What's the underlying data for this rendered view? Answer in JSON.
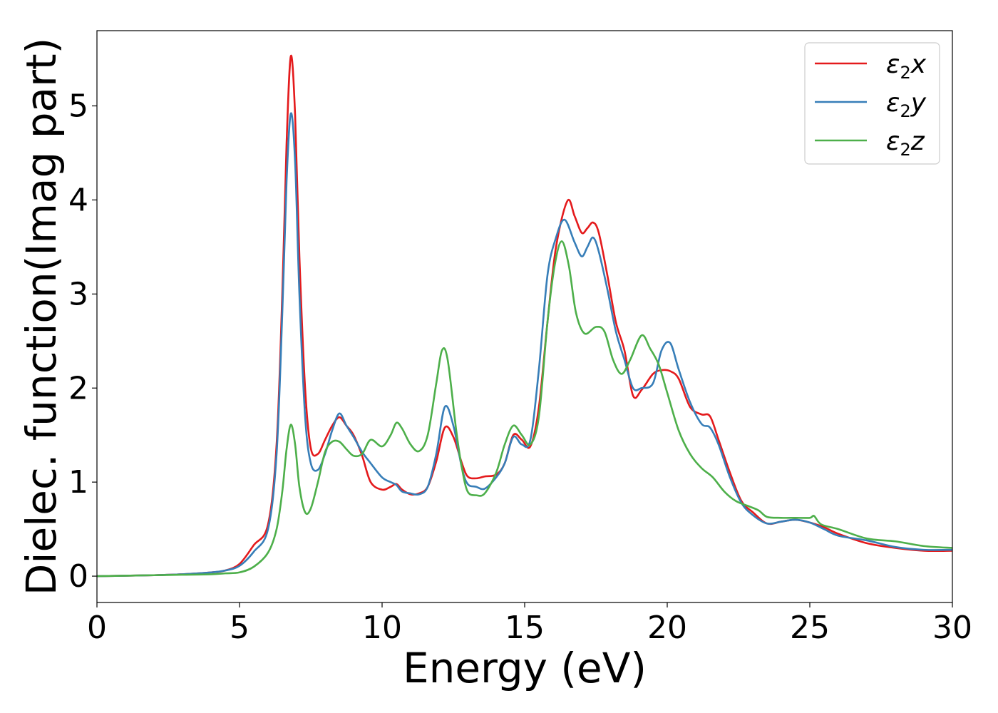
{
  "chart_data": {
    "type": "line",
    "xlabel": "Energy (eV)",
    "ylabel": "Dielec. function(Imag part)",
    "xlim": [
      0,
      30
    ],
    "ylim": [
      -0.28,
      5.8
    ],
    "xticks": [
      0,
      5,
      10,
      15,
      20,
      25,
      30
    ],
    "yticks": [
      0,
      1,
      2,
      3,
      4,
      5
    ],
    "grid": false,
    "legend_position": "top-right",
    "series": [
      {
        "name": "ε2x",
        "legend": {
          "symbol": "ε",
          "sub": "2",
          "suffix": "x"
        },
        "color": "#e41a1c",
        "x": [
          0,
          1,
          2,
          3,
          4,
          4.5,
          5,
          5.5,
          6,
          6.3,
          6.5,
          6.65,
          6.8,
          6.95,
          7.1,
          7.3,
          7.5,
          7.75,
          8,
          8.25,
          8.5,
          8.75,
          9,
          9.3,
          9.6,
          10,
          10.3,
          10.5,
          10.7,
          11,
          11.3,
          11.6,
          11.9,
          12.2,
          12.5,
          12.8,
          13,
          13.3,
          13.6,
          14,
          14.3,
          14.6,
          14.9,
          15.2,
          15.5,
          15.8,
          16.1,
          16.5,
          16.75,
          17,
          17.2,
          17.4,
          17.6,
          17.9,
          18.2,
          18.5,
          18.8,
          19.1,
          19.5,
          19.8,
          20.1,
          20.4,
          20.8,
          21.2,
          21.5,
          21.8,
          22.2,
          22.6,
          23,
          23.5,
          24,
          24.5,
          25,
          25.5,
          26,
          27,
          28,
          29,
          30
        ],
        "y": [
          0.0,
          0.005,
          0.01,
          0.02,
          0.04,
          0.06,
          0.13,
          0.33,
          0.55,
          1.4,
          3.0,
          4.6,
          5.53,
          4.9,
          3.4,
          2.0,
          1.36,
          1.3,
          1.45,
          1.6,
          1.69,
          1.6,
          1.5,
          1.28,
          1.0,
          0.92,
          0.95,
          0.98,
          0.92,
          0.87,
          0.88,
          0.95,
          1.22,
          1.58,
          1.48,
          1.2,
          1.06,
          1.04,
          1.06,
          1.08,
          1.2,
          1.5,
          1.45,
          1.38,
          1.8,
          2.7,
          3.5,
          3.99,
          3.83,
          3.65,
          3.7,
          3.76,
          3.65,
          3.2,
          2.7,
          2.4,
          1.92,
          1.98,
          2.15,
          2.19,
          2.18,
          2.1,
          1.8,
          1.72,
          1.7,
          1.45,
          1.1,
          0.8,
          0.68,
          0.56,
          0.58,
          0.6,
          0.57,
          0.52,
          0.45,
          0.35,
          0.3,
          0.27,
          0.27
        ]
      },
      {
        "name": "ε2y",
        "legend": {
          "symbol": "ε",
          "sub": "2",
          "suffix": "y"
        },
        "color": "#377eb8",
        "x": [
          0,
          1,
          2,
          3,
          4,
          4.5,
          5,
          5.5,
          6,
          6.3,
          6.5,
          6.65,
          6.8,
          6.95,
          7.1,
          7.3,
          7.5,
          7.75,
          8,
          8.25,
          8.5,
          8.75,
          9,
          9.3,
          9.6,
          10,
          10.3,
          10.5,
          10.7,
          11,
          11.3,
          11.6,
          11.9,
          12.2,
          12.5,
          12.8,
          13,
          13.3,
          13.6,
          14,
          14.3,
          14.6,
          14.9,
          15.2,
          15.5,
          15.8,
          16.1,
          16.4,
          16.75,
          17,
          17.2,
          17.4,
          17.6,
          17.9,
          18.2,
          18.5,
          18.8,
          19.1,
          19.5,
          19.8,
          20.1,
          20.4,
          20.8,
          21.2,
          21.5,
          21.8,
          22.2,
          22.6,
          23,
          23.5,
          24,
          24.5,
          25,
          25.5,
          26,
          27,
          28,
          29,
          30
        ],
        "y": [
          0.0,
          0.005,
          0.01,
          0.02,
          0.04,
          0.06,
          0.11,
          0.26,
          0.5,
          1.3,
          2.8,
          4.2,
          4.92,
          4.4,
          3.0,
          1.7,
          1.2,
          1.13,
          1.3,
          1.55,
          1.73,
          1.6,
          1.48,
          1.32,
          1.2,
          1.05,
          1.0,
          0.97,
          0.9,
          0.88,
          0.87,
          0.95,
          1.3,
          1.8,
          1.6,
          1.15,
          0.98,
          0.95,
          0.93,
          1.05,
          1.2,
          1.48,
          1.4,
          1.45,
          2.2,
          3.2,
          3.6,
          3.79,
          3.55,
          3.4,
          3.5,
          3.6,
          3.45,
          3.05,
          2.6,
          2.3,
          2.0,
          2.0,
          2.05,
          2.4,
          2.48,
          2.2,
          1.85,
          1.62,
          1.58,
          1.4,
          1.05,
          0.78,
          0.65,
          0.56,
          0.58,
          0.6,
          0.57,
          0.5,
          0.43,
          0.38,
          0.31,
          0.28,
          0.28
        ]
      },
      {
        "name": "ε2z",
        "legend": {
          "symbol": "ε",
          "sub": "2",
          "suffix": "z"
        },
        "color": "#4daf4a",
        "x": [
          0,
          1,
          2,
          3,
          4,
          4.5,
          5,
          5.5,
          6,
          6.3,
          6.5,
          6.65,
          6.8,
          6.95,
          7.1,
          7.3,
          7.5,
          7.75,
          8,
          8.25,
          8.5,
          8.75,
          9,
          9.3,
          9.6,
          10,
          10.3,
          10.5,
          10.7,
          11,
          11.3,
          11.6,
          11.9,
          12.1,
          12.3,
          12.6,
          12.8,
          13,
          13.3,
          13.6,
          14,
          14.3,
          14.6,
          14.9,
          15.2,
          15.5,
          15.8,
          16.05,
          16.3,
          16.55,
          16.8,
          17.1,
          17.5,
          17.8,
          18.1,
          18.4,
          18.7,
          19.1,
          19.4,
          19.7,
          20,
          20.4,
          20.8,
          21.2,
          21.6,
          22,
          22.4,
          22.8,
          23.2,
          23.5,
          24,
          24.5,
          25,
          25.15,
          25.4,
          26,
          27,
          28,
          29,
          30
        ],
        "y": [
          0.0,
          0.005,
          0.01,
          0.015,
          0.02,
          0.03,
          0.04,
          0.1,
          0.25,
          0.5,
          0.9,
          1.35,
          1.61,
          1.4,
          0.95,
          0.68,
          0.72,
          1.0,
          1.32,
          1.43,
          1.43,
          1.35,
          1.28,
          1.3,
          1.45,
          1.38,
          1.5,
          1.63,
          1.57,
          1.4,
          1.33,
          1.5,
          2.05,
          2.4,
          2.3,
          1.55,
          1.15,
          0.9,
          0.86,
          0.88,
          1.1,
          1.4,
          1.6,
          1.5,
          1.4,
          1.7,
          2.7,
          3.3,
          3.56,
          3.3,
          2.8,
          2.58,
          2.65,
          2.6,
          2.3,
          2.15,
          2.3,
          2.56,
          2.42,
          2.25,
          1.95,
          1.55,
          1.3,
          1.15,
          1.05,
          0.9,
          0.8,
          0.75,
          0.7,
          0.63,
          0.62,
          0.62,
          0.62,
          0.64,
          0.55,
          0.5,
          0.4,
          0.37,
          0.32,
          0.3
        ]
      }
    ]
  }
}
